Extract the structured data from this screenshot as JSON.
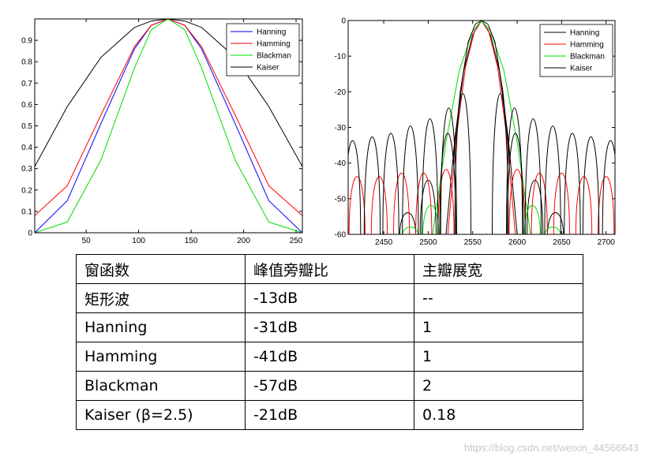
{
  "chart_data": [
    {
      "type": "line",
      "title": "",
      "xlabel": "",
      "ylabel": "",
      "xlim": [
        1,
        256
      ],
      "ylim": [
        0,
        1
      ],
      "grid": false,
      "legend_position": "top-right",
      "xticks": [
        50,
        100,
        150,
        200,
        250
      ],
      "yticks": [
        0,
        0.1,
        0.2,
        0.3,
        0.4,
        0.5,
        0.6,
        0.7,
        0.8,
        0.9
      ],
      "ytick_labels": [
        "0",
        "0.1",
        "0.2",
        "0.3",
        "0.4",
        "0.5",
        "0.6",
        "0.7",
        "0.8",
        "0.9"
      ],
      "series": [
        {
          "name": "Hanning",
          "color": "#0000ff",
          "x": [
            1,
            32,
            64,
            96,
            112,
            128,
            144,
            160,
            192,
            224,
            256
          ],
          "values": [
            0.0,
            0.15,
            0.51,
            0.86,
            0.97,
            1.0,
            0.97,
            0.86,
            0.51,
            0.15,
            0.0
          ]
        },
        {
          "name": "Hamming",
          "color": "#ff0000",
          "x": [
            1,
            32,
            64,
            96,
            112,
            128,
            144,
            160,
            192,
            224,
            256
          ],
          "values": [
            0.08,
            0.22,
            0.55,
            0.87,
            0.97,
            1.0,
            0.97,
            0.87,
            0.55,
            0.22,
            0.08
          ]
        },
        {
          "name": "Blackman",
          "color": "#00dd00",
          "x": [
            1,
            32,
            64,
            96,
            112,
            128,
            144,
            160,
            192,
            224,
            256
          ],
          "values": [
            0.0,
            0.05,
            0.34,
            0.77,
            0.95,
            1.0,
            0.95,
            0.77,
            0.34,
            0.05,
            0.0
          ]
        },
        {
          "name": "Kaiser",
          "color": "#000000",
          "x": [
            1,
            32,
            64,
            96,
            112,
            128,
            144,
            160,
            192,
            224,
            256
          ],
          "values": [
            0.31,
            0.59,
            0.82,
            0.96,
            0.99,
            1.0,
            0.99,
            0.96,
            0.82,
            0.59,
            0.31
          ]
        }
      ]
    },
    {
      "type": "line",
      "title": "",
      "xlabel": "",
      "ylabel": "",
      "xlim": [
        2410,
        2710
      ],
      "ylim": [
        -60,
        0
      ],
      "grid": false,
      "legend_position": "top-right",
      "xticks": [
        2450,
        2500,
        2550,
        2600,
        2650,
        2700
      ],
      "yticks": [
        0,
        -10,
        -20,
        -30,
        -40,
        -50,
        -60
      ],
      "series": [
        {
          "name": "Hanning",
          "color": "#000000",
          "x": [
            2520,
            2530,
            2540,
            2550,
            2560,
            2570,
            2580,
            2590,
            2600
          ],
          "values": [
            -60,
            -33,
            -14,
            -4,
            0,
            -4,
            -14,
            -33,
            -60
          ]
        },
        {
          "name": "Hamming",
          "color": "#ff0000",
          "x": [
            2522,
            2532,
            2542,
            2552,
            2560,
            2568,
            2578,
            2588,
            2598
          ],
          "values": [
            -60,
            -32,
            -13,
            -3,
            0,
            -3,
            -13,
            -32,
            -60
          ]
        },
        {
          "name": "Blackman",
          "color": "#00dd00",
          "x": [
            2505,
            2520,
            2535,
            2550,
            2560,
            2570,
            2585,
            2600,
            2615
          ],
          "values": [
            -60,
            -34,
            -14,
            -3,
            0,
            -3,
            -14,
            -34,
            -60
          ]
        },
        {
          "name": "Kaiser",
          "color": "#000000",
          "x": [
            2528,
            2536,
            2545,
            2553,
            2560,
            2567,
            2575,
            2584,
            2592
          ],
          "values": [
            -40,
            -20,
            -6,
            -1,
            0,
            -1,
            -6,
            -20,
            -40
          ]
        }
      ],
      "sidelobe_peaks": {
        "Hanning": [
          [
            2477,
            -54
          ],
          [
            2500,
            -45
          ],
          [
            2522,
            -32
          ]
        ],
        "Hamming": [
          [
            2420,
            -44
          ],
          [
            2445,
            -44
          ],
          [
            2470,
            -43
          ],
          [
            2495,
            -43
          ],
          [
            2520,
            -42
          ]
        ],
        "Blackman": [
          [
            2480,
            -58
          ],
          [
            2503,
            -52
          ]
        ],
        "Kaiser": [
          [
            2415,
            -34
          ],
          [
            2437,
            -33
          ],
          [
            2458,
            -32
          ],
          [
            2480,
            -30
          ],
          [
            2502,
            -28
          ],
          [
            2523,
            -25
          ],
          [
            2539,
            -21
          ]
        ]
      }
    }
  ],
  "table": {
    "headers": [
      "窗函数",
      "峰值旁瓣比",
      "主瓣展宽"
    ],
    "rows": [
      [
        "矩形波",
        "-13dB",
        "--"
      ],
      [
        "Hanning",
        "-31dB",
        "1"
      ],
      [
        "Hamming",
        "-41dB",
        "1"
      ],
      [
        "Blackman",
        "-57dB",
        "2"
      ],
      [
        "Kaiser (β=2.5)",
        "-21dB",
        "0.18"
      ]
    ]
  },
  "watermark": "https://blog.csdn.net/weixin_44566643"
}
